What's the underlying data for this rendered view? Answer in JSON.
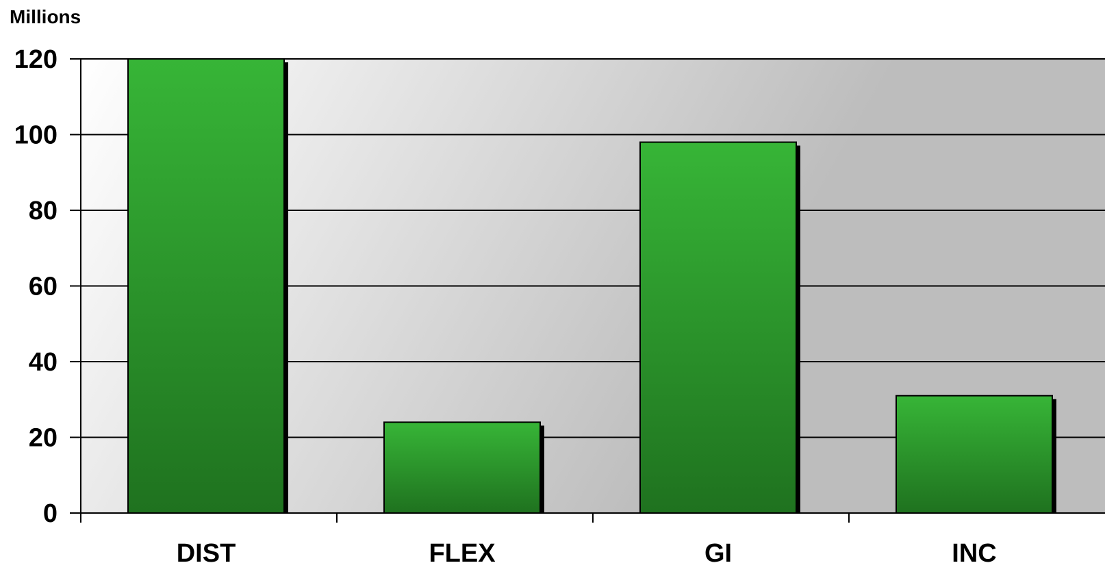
{
  "chart_data": {
    "type": "bar",
    "title": "",
    "xlabel": "",
    "ylabel": "",
    "unit_label": "Millions",
    "categories": [
      "DIST",
      "FLEX",
      "GI",
      "INC"
    ],
    "series": [
      {
        "values": [
          120,
          24,
          98,
          31
        ],
        "color": "#2e9e2e"
      }
    ],
    "ylim": [
      0,
      120
    ],
    "yticks": [
      0,
      20,
      40,
      60,
      80,
      100,
      120
    ],
    "grid": true,
    "legend": "none",
    "colors": {
      "bar_top": "#37b537",
      "bar_bottom": "#1f721f",
      "bar_shadow": "#000000",
      "plot_bg_left": "#ffffff",
      "plot_bg_right": "#bdbdbd",
      "grid_line": "#000000"
    }
  }
}
